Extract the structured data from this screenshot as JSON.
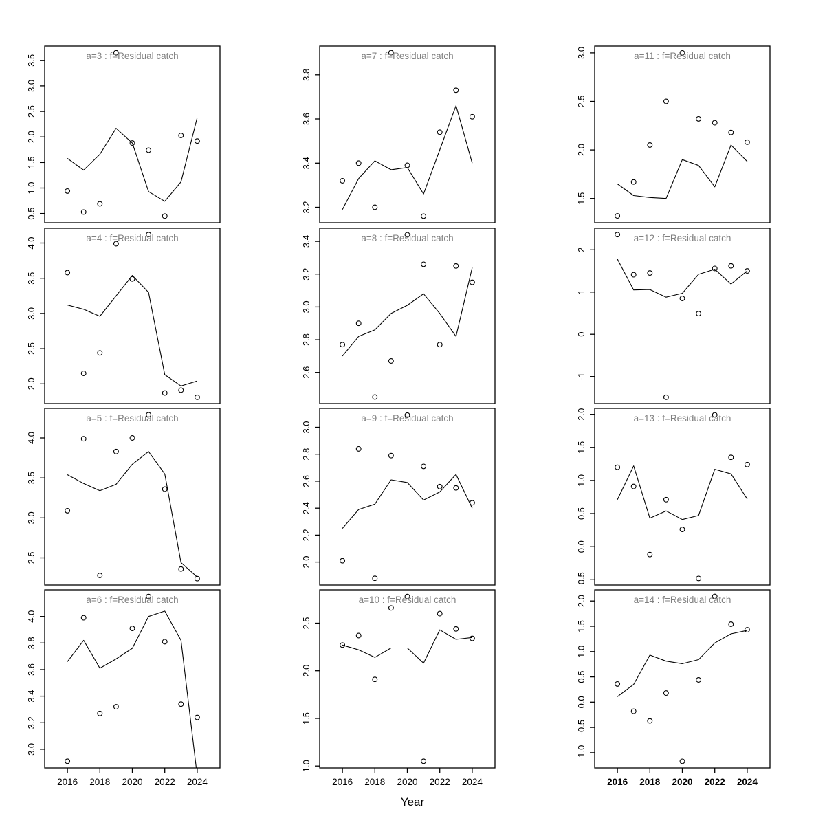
{
  "figure": {
    "xlabel": "Year",
    "years": [
      2016,
      2017,
      2018,
      2019,
      2020,
      2021,
      2022,
      2023,
      2024
    ],
    "x_tick_years": [
      2016,
      2018,
      2020,
      2022,
      2024
    ],
    "x_tick_labels": [
      "2016",
      "2018",
      "2020",
      "2022",
      "2024"
    ],
    "xlim": [
      2014.6,
      2025.4
    ],
    "colors": {
      "background": "#ffffff",
      "axis": "#000000",
      "title_text": "#7f7f7f",
      "line": "#000000",
      "points": "#000000"
    }
  },
  "chart_data": [
    {
      "type": "line",
      "id": "a3",
      "title": "a=3 : f=Residual catch",
      "ylim": [
        0.32,
        3.78
      ],
      "yticks": [
        0.5,
        1.0,
        1.5,
        2.0,
        2.5,
        3.0,
        3.5
      ],
      "ytick_labels": [
        "0.5",
        "1.0",
        "1.5",
        "2.0",
        "2.5",
        "3.0",
        "3.5"
      ],
      "points": [
        0.94,
        0.53,
        0.69,
        3.65,
        1.88,
        1.74,
        0.45,
        2.03,
        1.92
      ],
      "line": [
        1.58,
        1.35,
        1.66,
        2.17,
        1.88,
        0.93,
        0.74,
        1.12,
        2.38
      ],
      "x_labels_bold": false
    },
    {
      "type": "line",
      "id": "a4",
      "title": "a=4 : f=Residual catch",
      "ylim": [
        1.72,
        4.21
      ],
      "yticks": [
        2.0,
        2.5,
        3.0,
        3.5,
        4.0
      ],
      "ytick_labels": [
        "2.0",
        "2.5",
        "3.0",
        "3.5",
        "4.0"
      ],
      "points": [
        3.58,
        2.15,
        2.44,
        3.99,
        3.49,
        4.12,
        1.87,
        1.91,
        1.81
      ],
      "line": [
        3.12,
        3.06,
        2.96,
        3.25,
        3.54,
        3.3,
        2.13,
        1.97,
        2.04
      ],
      "x_labels_bold": false
    },
    {
      "type": "line",
      "id": "a5",
      "title": "a=5 : f=Residual catch",
      "ylim": [
        2.16,
        4.37
      ],
      "yticks": [
        2.5,
        3.0,
        3.5,
        4.0
      ],
      "ytick_labels": [
        "2.5",
        "3.0",
        "3.5",
        "4.0"
      ],
      "points": [
        3.09,
        3.99,
        2.28,
        3.83,
        4.0,
        4.29,
        3.36,
        2.36,
        2.24
      ],
      "line": [
        3.54,
        3.43,
        3.34,
        3.42,
        3.67,
        3.83,
        3.55,
        2.44,
        2.26
      ],
      "x_labels_bold": false
    },
    {
      "type": "line",
      "id": "a6",
      "title": "a=6 : f=Residual catch",
      "ylim": [
        2.86,
        4.2
      ],
      "yticks": [
        3.0,
        3.2,
        3.4,
        3.6,
        3.8,
        4.0
      ],
      "ytick_labels": [
        "3.0",
        "3.2",
        "3.4",
        "3.6",
        "3.8",
        "4.0"
      ],
      "points": [
        2.91,
        3.99,
        3.27,
        3.32,
        3.91,
        4.15,
        3.81,
        3.34,
        3.24
      ],
      "line": [
        3.66,
        3.82,
        3.61,
        3.68,
        3.76,
        4.0,
        4.04,
        3.82,
        2.8
      ],
      "x_labels_bold": false
    },
    {
      "type": "line",
      "id": "a7",
      "title": "a=7 : f=Residual catch",
      "ylim": [
        3.13,
        3.93
      ],
      "yticks": [
        3.2,
        3.4,
        3.6,
        3.8
      ],
      "ytick_labels": [
        "3.2",
        "3.4",
        "3.6",
        "3.8"
      ],
      "points": [
        3.32,
        3.4,
        3.2,
        3.9,
        3.39,
        3.16,
        3.54,
        3.73,
        3.61
      ],
      "line": [
        3.19,
        3.33,
        3.41,
        3.37,
        3.38,
        3.26,
        3.46,
        3.66,
        3.4
      ],
      "x_labels_bold": false
    },
    {
      "type": "line",
      "id": "a8",
      "title": "a=8 : f=Residual catch",
      "ylim": [
        2.41,
        3.48
      ],
      "yticks": [
        2.6,
        2.8,
        3.0,
        3.2,
        3.4
      ],
      "ytick_labels": [
        "2.6",
        "2.8",
        "3.0",
        "3.2",
        "3.4"
      ],
      "points": [
        2.77,
        2.9,
        2.45,
        2.67,
        3.44,
        3.26,
        2.77,
        3.25,
        3.15
      ],
      "line": [
        2.7,
        2.82,
        2.86,
        2.96,
        3.01,
        3.08,
        2.96,
        2.82,
        3.24
      ],
      "x_labels_bold": false
    },
    {
      "type": "line",
      "id": "a9",
      "title": "a=9 : f=Residual catch",
      "ylim": [
        1.83,
        3.14
      ],
      "yticks": [
        2.0,
        2.2,
        2.4,
        2.6,
        2.8,
        3.0
      ],
      "ytick_labels": [
        "2.0",
        "2.2",
        "2.4",
        "2.6",
        "2.8",
        "3.0"
      ],
      "points": [
        2.01,
        2.84,
        1.88,
        2.79,
        3.09,
        2.71,
        2.56,
        2.55,
        2.44
      ],
      "line": [
        2.25,
        2.39,
        2.43,
        2.61,
        2.59,
        2.46,
        2.52,
        2.65,
        2.4
      ],
      "x_labels_bold": false
    },
    {
      "type": "line",
      "id": "a10",
      "title": "a=10 : f=Residual catch",
      "ylim": [
        0.98,
        2.85
      ],
      "yticks": [
        1.0,
        1.5,
        2.0,
        2.5
      ],
      "ytick_labels": [
        "1.0",
        "1.5",
        "2.0",
        "2.5"
      ],
      "points": [
        2.27,
        2.37,
        1.91,
        2.66,
        2.78,
        1.05,
        2.6,
        2.44,
        2.34
      ],
      "line": [
        2.27,
        2.22,
        2.14,
        2.24,
        2.24,
        2.08,
        2.43,
        2.33,
        2.35
      ],
      "x_labels_bold": false
    },
    {
      "type": "line",
      "id": "a11",
      "title": "a=11 : f=Residual catch",
      "ylim": [
        1.25,
        3.07
      ],
      "yticks": [
        1.5,
        2.0,
        2.5,
        3.0
      ],
      "ytick_labels": [
        "1.5",
        "2.0",
        "2.5",
        "3.0"
      ],
      "points": [
        1.32,
        1.67,
        2.05,
        2.5,
        3.0,
        2.32,
        2.28,
        2.18,
        2.08
      ],
      "line": [
        1.65,
        1.53,
        1.51,
        1.5,
        1.9,
        1.84,
        1.62,
        2.05,
        1.88
      ],
      "x_labels_bold": true
    },
    {
      "type": "line",
      "id": "a12",
      "title": "a=12 : f=Residual catch",
      "ylim": [
        -1.64,
        2.51
      ],
      "yticks": [
        -1,
        0,
        1,
        2
      ],
      "ytick_labels": [
        "-1",
        "0",
        "1",
        "2"
      ],
      "points": [
        2.36,
        1.41,
        1.45,
        -1.49,
        0.85,
        0.49,
        1.56,
        1.62,
        1.5
      ],
      "line": [
        1.78,
        1.05,
        1.06,
        0.88,
        0.97,
        1.42,
        1.54,
        1.19,
        1.5
      ],
      "x_labels_bold": true
    },
    {
      "type": "line",
      "id": "a13",
      "title": "a=13 : f=Residual catch",
      "ylim": [
        -0.58,
        2.09
      ],
      "yticks": [
        -0.5,
        0.0,
        0.5,
        1.0,
        1.5,
        2.0
      ],
      "ytick_labels": [
        "-0.5",
        "0.0",
        "0.5",
        "1.0",
        "1.5",
        "2.0"
      ],
      "points": [
        1.2,
        0.91,
        -0.12,
        0.71,
        0.26,
        -0.48,
        1.99,
        1.35,
        1.24
      ],
      "line": [
        0.71,
        1.22,
        0.43,
        0.54,
        0.41,
        0.47,
        1.17,
        1.1,
        0.72
      ],
      "x_labels_bold": true
    },
    {
      "type": "line",
      "id": "a14",
      "title": "a=14 : f=Residual catch",
      "ylim": [
        -1.3,
        2.22
      ],
      "yticks": [
        -1.0,
        -0.5,
        0.0,
        0.5,
        1.0,
        1.5,
        2.0
      ],
      "ytick_labels": [
        "-1.0",
        "-0.5",
        "0.0",
        "0.5",
        "1.0",
        "1.5",
        "2.0"
      ],
      "points": [
        0.36,
        -0.18,
        -0.37,
        0.18,
        -1.17,
        0.44,
        2.09,
        1.54,
        1.43
      ],
      "line": [
        0.11,
        0.35,
        0.93,
        0.81,
        0.76,
        0.84,
        1.17,
        1.35,
        1.42
      ],
      "x_labels_bold": true
    }
  ]
}
